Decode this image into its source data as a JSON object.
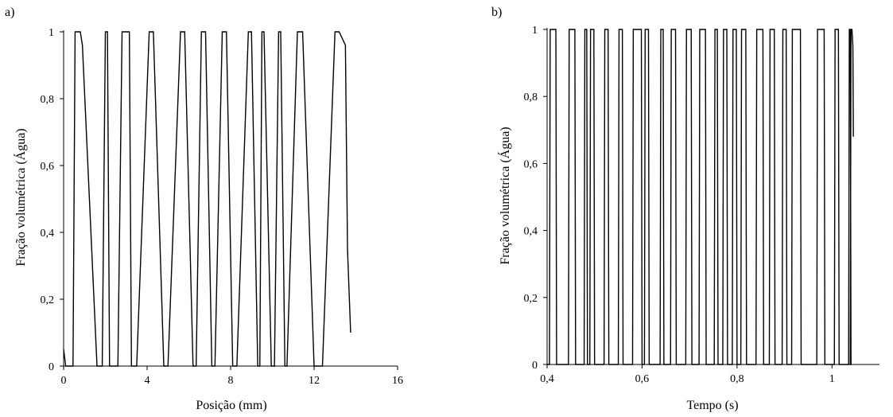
{
  "chart_data": [
    {
      "panel_label": "a)",
      "type": "line",
      "xlabel": "Posição (mm)",
      "ylabel": "Fração volumétrica (Água)",
      "xlim": [
        0,
        16
      ],
      "ylim": [
        0,
        1
      ],
      "xticks": [
        0,
        4,
        8,
        12,
        16
      ],
      "xtick_labels": [
        "0",
        "4",
        "8",
        "12",
        "16"
      ],
      "yticks": [
        0,
        0.2,
        0.4,
        0.6,
        0.8,
        1
      ],
      "ytick_labels": [
        "0",
        "0,2",
        "0,4",
        "0,6",
        "0,8",
        "1"
      ],
      "grid": false,
      "series": [
        {
          "x": [
            0,
            0.1,
            0.45,
            0.55,
            0.8,
            0.9,
            1.6,
            1.85,
            2.0,
            2.1,
            2.2,
            2.6,
            2.8,
            3.15,
            3.25,
            3.5,
            4.1,
            4.3,
            4.8,
            5.0,
            5.6,
            5.8,
            6.2,
            6.35,
            6.6,
            6.8,
            7.1,
            7.25,
            7.6,
            7.8,
            8.1,
            8.3,
            8.85,
            9.0,
            9.3,
            9.4,
            9.5,
            9.6,
            9.95,
            10.1,
            10.3,
            10.4,
            10.6,
            10.7,
            11.2,
            11.45,
            12.0,
            12.1,
            12.25,
            12.4,
            13.0,
            13.2,
            13.5,
            13.6,
            13.75
          ],
          "y": [
            0.05,
            0,
            0,
            1,
            1,
            0.96,
            0,
            0,
            1,
            1,
            0,
            0,
            1,
            1,
            0,
            0,
            1,
            1,
            0,
            0,
            1,
            1,
            0,
            0,
            1,
            1,
            0,
            0,
            1,
            1,
            0,
            0,
            1,
            1,
            0,
            0,
            1,
            1,
            0,
            0,
            1,
            1,
            0,
            0,
            1,
            1,
            0,
            0,
            0,
            0,
            1,
            1,
            0.96,
            0.35,
            0.1
          ]
        }
      ]
    },
    {
      "panel_label": "b)",
      "type": "line",
      "xlabel": "Tempo (s)",
      "ylabel": "Fração volumétrica (Água)",
      "xlim": [
        0.4,
        1.1
      ],
      "ylim": [
        0,
        1
      ],
      "xticks": [
        0.4,
        0.6,
        0.8,
        1
      ],
      "xtick_labels": [
        "0,4",
        "0,6",
        "0,8",
        "1"
      ],
      "yticks": [
        0,
        0.2,
        0.4,
        0.6,
        0.8,
        1
      ],
      "ytick_labels": [
        "0",
        "0,2",
        "0,4",
        "0,6",
        "0,8",
        "1"
      ],
      "grid": false,
      "series": [
        {
          "pulses": [
            [
              0.405,
              0.42
            ],
            [
              0.445,
              0.46
            ],
            [
              0.478,
              0.485
            ],
            [
              0.49,
              0.5
            ],
            [
              0.52,
              0.53
            ],
            [
              0.55,
              0.56
            ],
            [
              0.58,
              0.6
            ],
            [
              0.605,
              0.615
            ],
            [
              0.638,
              0.646
            ],
            [
              0.66,
              0.672
            ],
            [
              0.692,
              0.705
            ],
            [
              0.72,
              0.735
            ],
            [
              0.752,
              0.76
            ],
            [
              0.77,
              0.78
            ],
            [
              0.79,
              0.8
            ],
            [
              0.808,
              0.82
            ],
            [
              0.84,
              0.856
            ],
            [
              0.868,
              0.88
            ],
            [
              0.895,
              0.905
            ],
            [
              0.915,
              0.935
            ],
            [
              0.968,
              0.985
            ],
            [
              1.005,
              1.015
            ],
            [
              1.035,
              1.04
            ]
          ],
          "tail": [
            [
              1.04,
              1.0
            ],
            [
              1.042,
              1.0
            ],
            [
              1.044,
              0.95
            ],
            [
              1.045,
              0.68
            ]
          ]
        }
      ]
    }
  ]
}
